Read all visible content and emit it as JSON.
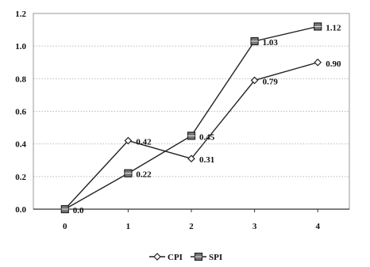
{
  "chart_data": {
    "type": "line",
    "categories": [
      "0",
      "1",
      "2",
      "3",
      "4"
    ],
    "x": [
      0,
      1,
      2,
      3,
      4
    ],
    "ylim": [
      0,
      1.2
    ],
    "yticks": [
      "0.0",
      "0.2",
      "0.4",
      "0.6",
      "0.8",
      "1.0",
      "1.2"
    ],
    "grid": true,
    "legend_position": "bottom-center",
    "series": [
      {
        "name": "CPI",
        "marker": "diamond",
        "values": [
          0.0,
          0.42,
          0.31,
          0.79,
          0.9
        ],
        "labels": [
          "",
          "0.42",
          "0.31",
          "0.79",
          "0.90"
        ]
      },
      {
        "name": "SPI",
        "marker": "square",
        "values": [
          0.0,
          0.22,
          0.45,
          1.03,
          1.12
        ],
        "labels": [
          "0.0",
          "0.22",
          "0.45",
          "1.03",
          "1.12"
        ]
      }
    ],
    "line_color": "#222222",
    "grid_color": "#bbbbbb"
  }
}
